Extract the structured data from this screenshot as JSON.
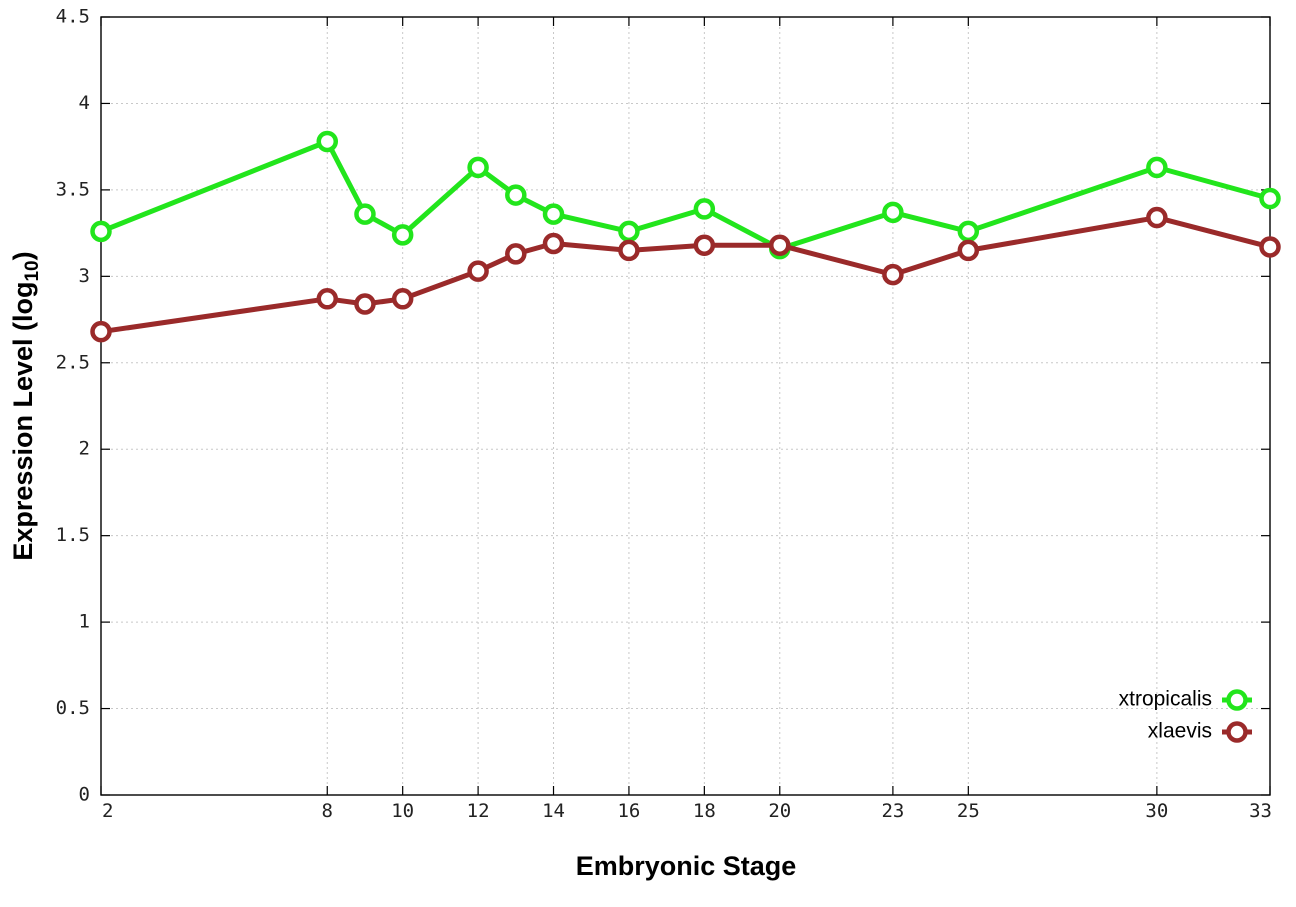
{
  "chart_data": {
    "type": "line",
    "title": "",
    "xlabel": "Embryonic Stage",
    "ylabel_main": "Expression Level (log",
    "ylabel_sub": "10",
    "ylabel_close": ")",
    "x": [
      2,
      8,
      9,
      10,
      12,
      13,
      14,
      16,
      18,
      20,
      23,
      25,
      30,
      33
    ],
    "x_ticks": [
      2,
      8,
      10,
      12,
      14,
      16,
      18,
      20,
      23,
      25,
      30,
      33
    ],
    "x_tick_labels": [
      "2",
      "8",
      "10",
      "12",
      "14",
      "16",
      "18",
      "20",
      "23",
      "25",
      "30",
      "33"
    ],
    "xlim": [
      2,
      33
    ],
    "ylim": [
      0,
      4.5
    ],
    "y_ticks": [
      0,
      0.5,
      1,
      1.5,
      2,
      2.5,
      3,
      3.5,
      4,
      4.5
    ],
    "y_tick_labels": [
      "0",
      "0.5",
      "1",
      "1.5",
      "2",
      "2.5",
      "3",
      "3.5",
      "4",
      "4.5"
    ],
    "grid": true,
    "legend_position": "bottom-right",
    "series": [
      {
        "name": "xtropicalis",
        "color": "#22e51c",
        "values": [
          3.26,
          3.78,
          3.36,
          3.24,
          3.63,
          3.47,
          3.36,
          3.26,
          3.39,
          3.16,
          3.37,
          3.26,
          3.63,
          3.45
        ]
      },
      {
        "name": "xlaevis",
        "color": "#9a2a2a",
        "values": [
          2.68,
          2.87,
          2.84,
          2.87,
          3.03,
          3.13,
          3.19,
          3.15,
          3.18,
          3.18,
          3.01,
          3.15,
          3.34,
          3.17
        ]
      }
    ]
  }
}
